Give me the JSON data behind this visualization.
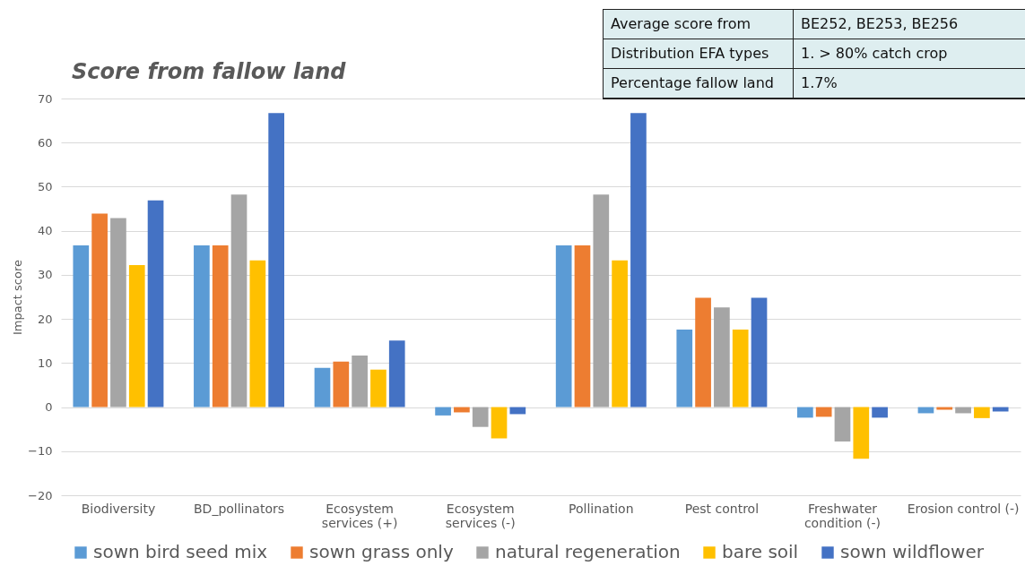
{
  "chart_data": {
    "type": "bar",
    "title": "Score from fallow land",
    "ylabel": "Impact score",
    "categories": [
      "Biodiversity",
      "BD_pollinators",
      "Ecosystem services (+)",
      "Ecosystem services (-)",
      "Pollination",
      "Pest control",
      "Freshwater condition (-)",
      "Erosion control (-)"
    ],
    "series": [
      {
        "name": "sown bird seed mix",
        "color": "#5b9bd5",
        "values": [
          36.7,
          36.7,
          8.9,
          -1.9,
          36.7,
          17.6,
          -2.4,
          -1.4
        ]
      },
      {
        "name": "sown grass only",
        "color": "#ed7d31",
        "values": [
          43.9,
          36.7,
          10.3,
          -1.2,
          36.7,
          24.8,
          -2.2,
          -0.6
        ]
      },
      {
        "name": "natural regeneration",
        "color": "#a5a5a5",
        "values": [
          42.9,
          48.2,
          11.7,
          -4.5,
          48.2,
          22.6,
          -7.8,
          -1.4
        ]
      },
      {
        "name": "bare soil",
        "color": "#ffc000",
        "values": [
          32.2,
          33.3,
          8.5,
          -7.1,
          33.3,
          17.6,
          -11.7,
          -2.5
        ]
      },
      {
        "name": "sown wildflower",
        "color": "#4472c4",
        "values": [
          46.9,
          66.7,
          15.1,
          -1.6,
          66.7,
          24.8,
          -2.4,
          -1.0
        ]
      }
    ],
    "ylim": [
      -20,
      70
    ],
    "yticks": [
      -20,
      -10,
      0,
      10,
      20,
      30,
      40,
      50,
      60,
      70
    ],
    "grid": "y",
    "legend": "bottom",
    "annotations": [
      "Average score from",
      "BE252, BE253, BE256",
      "Distribution EFA types",
      "1. > 80% catch crop",
      "Percentage fallow land",
      "1.7%"
    ]
  }
}
